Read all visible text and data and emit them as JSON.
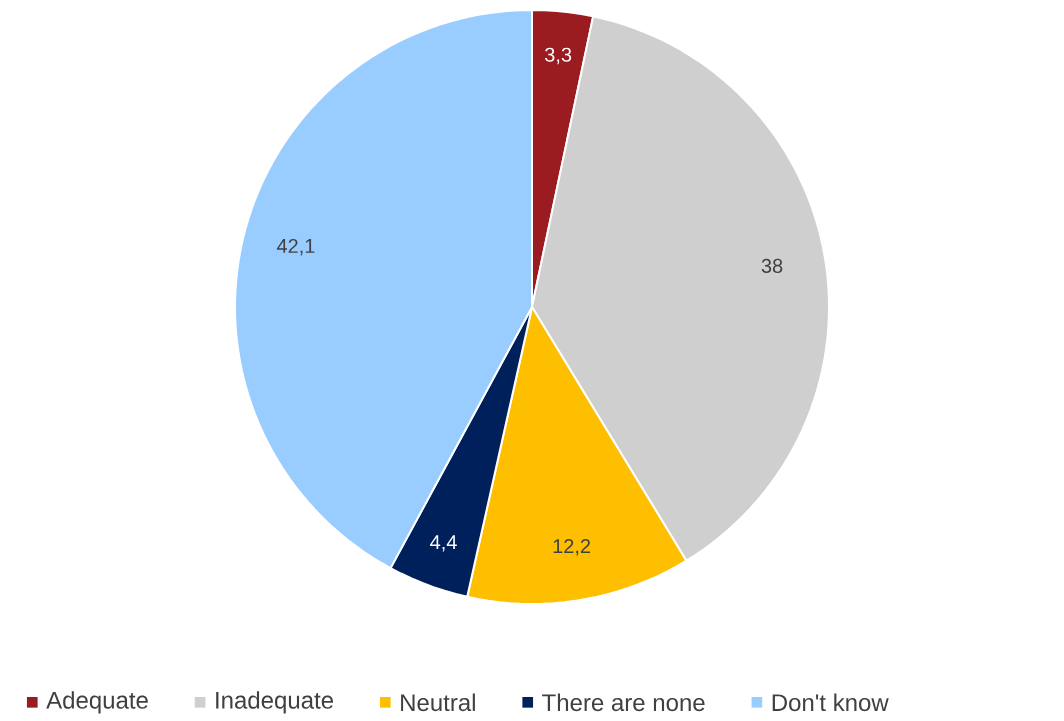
{
  "chart_data": {
    "type": "pie",
    "categories": [
      "Adequate",
      "Inadequate",
      "Neutral",
      "There are none",
      "Don't know"
    ],
    "values": [
      3.3,
      38,
      12.2,
      4.4,
      42.1
    ],
    "value_labels": [
      "3,3",
      "38",
      "12,2",
      "4,4",
      "42,1"
    ],
    "colors": [
      "#9b1c20",
      "#cfcfcf",
      "#fdbf00",
      "#00205b",
      "#99ccff"
    ],
    "legend": "bottom"
  }
}
